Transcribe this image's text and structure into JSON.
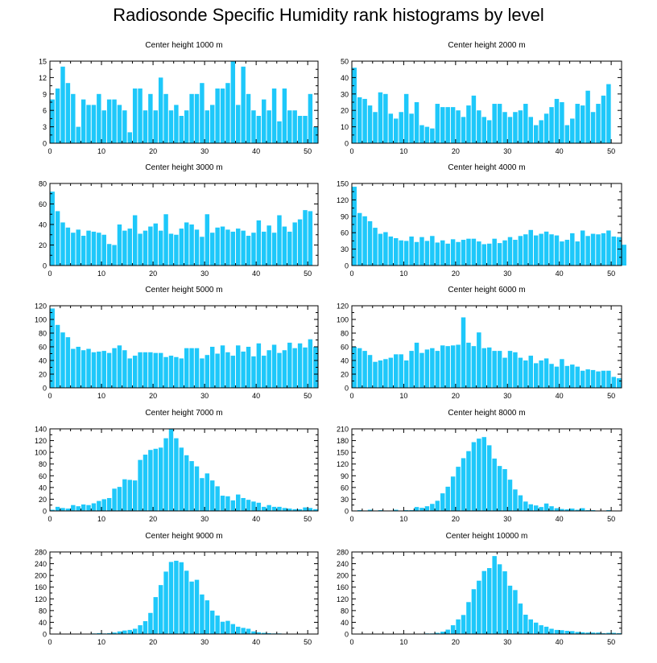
{
  "title": "Radiosonde Specific Humidity rank histograms by level",
  "colors": {
    "bar": "#1ec8fa",
    "axis": "#000000",
    "text": "#000000"
  },
  "chart_data": [
    {
      "type": "bar",
      "title": "Center height 1000 m",
      "xlim": [
        0,
        52
      ],
      "ylim": [
        0,
        15
      ],
      "yticks": [
        0,
        3,
        6,
        9,
        12,
        15
      ],
      "xticks": [
        0,
        10,
        20,
        30,
        40,
        50
      ],
      "values": [
        8,
        10,
        14,
        11,
        9,
        3,
        8,
        7,
        7,
        9,
        6,
        8,
        8,
        7,
        6,
        2,
        10,
        10,
        6,
        9,
        6,
        12,
        9,
        6,
        7,
        5,
        6,
        9,
        9,
        11,
        6,
        7,
        10,
        10,
        11,
        15,
        7,
        14,
        9,
        6,
        5,
        8,
        6,
        10,
        4,
        10,
        6,
        6,
        5,
        5,
        9,
        3
      ]
    },
    {
      "type": "bar",
      "title": "Center height 2000 m",
      "xlim": [
        0,
        52
      ],
      "ylim": [
        0,
        50
      ],
      "yticks": [
        0,
        10,
        20,
        30,
        40,
        50
      ],
      "xticks": [
        0,
        10,
        20,
        30,
        40,
        50
      ],
      "values": [
        46,
        28,
        27,
        23,
        19,
        31,
        30,
        18,
        15,
        19,
        30,
        18,
        25,
        11,
        10,
        9,
        24,
        22,
        22,
        22,
        20,
        16,
        23,
        29,
        20,
        16,
        14,
        24,
        24,
        19,
        16,
        19,
        20,
        24,
        16,
        11,
        14,
        18,
        22,
        27,
        25,
        11,
        15,
        24,
        23,
        32,
        19,
        24,
        29,
        36
      ]
    },
    {
      "type": "bar",
      "title": "Center height 3000 m",
      "xlim": [
        0,
        52
      ],
      "ylim": [
        0,
        80
      ],
      "yticks": [
        0,
        20,
        40,
        60,
        80
      ],
      "xticks": [
        0,
        10,
        20,
        30,
        40,
        50
      ],
      "values": [
        72,
        53,
        42,
        37,
        32,
        35,
        29,
        34,
        33,
        32,
        30,
        21,
        20,
        40,
        34,
        36,
        49,
        31,
        34,
        38,
        41,
        34,
        50,
        31,
        30,
        36,
        42,
        40,
        35,
        28,
        50,
        32,
        37,
        38,
        35,
        33,
        36,
        34,
        29,
        32,
        44,
        33,
        39,
        32,
        49,
        38,
        33,
        42,
        45,
        54,
        53
      ]
    },
    {
      "type": "bar",
      "title": "Center height 4000 m",
      "xlim": [
        0,
        52
      ],
      "ylim": [
        0,
        150
      ],
      "yticks": [
        0,
        30,
        60,
        90,
        120,
        150
      ],
      "xticks": [
        0,
        10,
        20,
        30,
        40,
        50
      ],
      "values": [
        144,
        96,
        90,
        81,
        69,
        58,
        61,
        53,
        50,
        46,
        45,
        53,
        43,
        52,
        45,
        54,
        42,
        46,
        40,
        48,
        43,
        47,
        49,
        49,
        44,
        39,
        40,
        49,
        41,
        46,
        52,
        47,
        54,
        57,
        65,
        55,
        58,
        62,
        57,
        55,
        44,
        47,
        59,
        44,
        64,
        54,
        58,
        57,
        59,
        64,
        53,
        52,
        38
      ]
    },
    {
      "type": "bar",
      "title": "Center height 5000 m",
      "xlim": [
        0,
        52
      ],
      "ylim": [
        0,
        120
      ],
      "yticks": [
        0,
        20,
        40,
        60,
        80,
        100,
        120
      ],
      "xticks": [
        0,
        10,
        20,
        30,
        40,
        50
      ],
      "values": [
        116,
        92,
        81,
        74,
        57,
        60,
        55,
        57,
        52,
        53,
        54,
        51,
        58,
        62,
        55,
        43,
        47,
        52,
        52,
        52,
        51,
        51,
        45,
        47,
        45,
        43,
        58,
        58,
        58,
        43,
        48,
        60,
        50,
        62,
        52,
        47,
        62,
        53,
        60,
        46,
        65,
        47,
        55,
        63,
        51,
        55,
        66,
        58,
        65,
        59,
        71,
        60
      ]
    },
    {
      "type": "bar",
      "title": "Center height 6000 m",
      "xlim": [
        0,
        52
      ],
      "ylim": [
        0,
        120
      ],
      "yticks": [
        0,
        20,
        40,
        60,
        80,
        100,
        120
      ],
      "xticks": [
        0,
        10,
        20,
        30,
        40,
        50
      ],
      "values": [
        60,
        58,
        54,
        48,
        38,
        40,
        42,
        44,
        49,
        49,
        40,
        54,
        66,
        51,
        56,
        58,
        54,
        62,
        61,
        62,
        63,
        103,
        66,
        61,
        81,
        58,
        59,
        54,
        54,
        44,
        54,
        52,
        44,
        40,
        47,
        36,
        40,
        43,
        35,
        31,
        42,
        32,
        34,
        31,
        25,
        27,
        26,
        24,
        25,
        25,
        16,
        14
      ]
    },
    {
      "type": "bar",
      "title": "Center height 7000 m",
      "xlim": [
        0,
        52
      ],
      "ylim": [
        0,
        140
      ],
      "yticks": [
        0,
        20,
        40,
        60,
        80,
        100,
        120,
        140
      ],
      "xticks": [
        0,
        10,
        20,
        30,
        40,
        50
      ],
      "values": [
        2,
        7,
        5,
        4,
        10,
        8,
        11,
        10,
        13,
        17,
        20,
        22,
        38,
        41,
        54,
        53,
        52,
        87,
        96,
        104,
        106,
        108,
        124,
        140,
        124,
        108,
        95,
        85,
        76,
        56,
        64,
        52,
        42,
        26,
        25,
        18,
        28,
        22,
        19,
        16,
        14,
        7,
        10,
        7,
        7,
        5,
        4,
        3,
        3,
        6,
        5,
        3
      ]
    },
    {
      "type": "bar",
      "title": "Center height 8000 m",
      "xlim": [
        0,
        52
      ],
      "ylim": [
        0,
        210
      ],
      "yticks": [
        0,
        30,
        60,
        90,
        120,
        150,
        180,
        210
      ],
      "xticks": [
        0,
        10,
        20,
        30,
        40,
        50
      ],
      "values": [
        1,
        2,
        0,
        3,
        1,
        2,
        1,
        1,
        3,
        1,
        2,
        2,
        10,
        8,
        12,
        18,
        26,
        45,
        62,
        88,
        113,
        135,
        153,
        176,
        185,
        189,
        168,
        134,
        115,
        107,
        80,
        55,
        40,
        24,
        17,
        14,
        10,
        19,
        12,
        7,
        5,
        4,
        6,
        3,
        7,
        2,
        2,
        1,
        1,
        2,
        1,
        1
      ]
    },
    {
      "type": "bar",
      "title": "Center height 9000 m",
      "xlim": [
        0,
        52
      ],
      "ylim": [
        0,
        280
      ],
      "yticks": [
        0,
        40,
        80,
        120,
        160,
        200,
        240,
        280
      ],
      "xticks": [
        0,
        10,
        20,
        30,
        40,
        50
      ],
      "values": [
        0,
        0,
        1,
        0,
        1,
        0,
        1,
        1,
        2,
        3,
        2,
        3,
        5,
        9,
        12,
        14,
        18,
        30,
        44,
        72,
        126,
        167,
        213,
        246,
        250,
        245,
        216,
        179,
        185,
        135,
        115,
        80,
        63,
        42,
        45,
        34,
        25,
        21,
        18,
        9,
        6,
        4,
        3,
        2,
        2,
        1,
        1,
        1,
        0,
        1,
        0,
        0
      ]
    },
    {
      "type": "bar",
      "title": "Center height 10000 m",
      "xlim": [
        0,
        52
      ],
      "ylim": [
        0,
        280
      ],
      "yticks": [
        0,
        40,
        80,
        120,
        160,
        200,
        240,
        280
      ],
      "xticks": [
        0,
        10,
        20,
        30,
        40,
        50
      ],
      "values": [
        0,
        0,
        0,
        0,
        0,
        0,
        0,
        0,
        0,
        0,
        1,
        1,
        1,
        1,
        2,
        2,
        4,
        8,
        15,
        30,
        50,
        65,
        109,
        153,
        182,
        215,
        225,
        266,
        238,
        214,
        165,
        150,
        104,
        66,
        50,
        39,
        30,
        25,
        18,
        14,
        13,
        11,
        10,
        7,
        6,
        5,
        5,
        5,
        3,
        4,
        4,
        3
      ]
    }
  ]
}
